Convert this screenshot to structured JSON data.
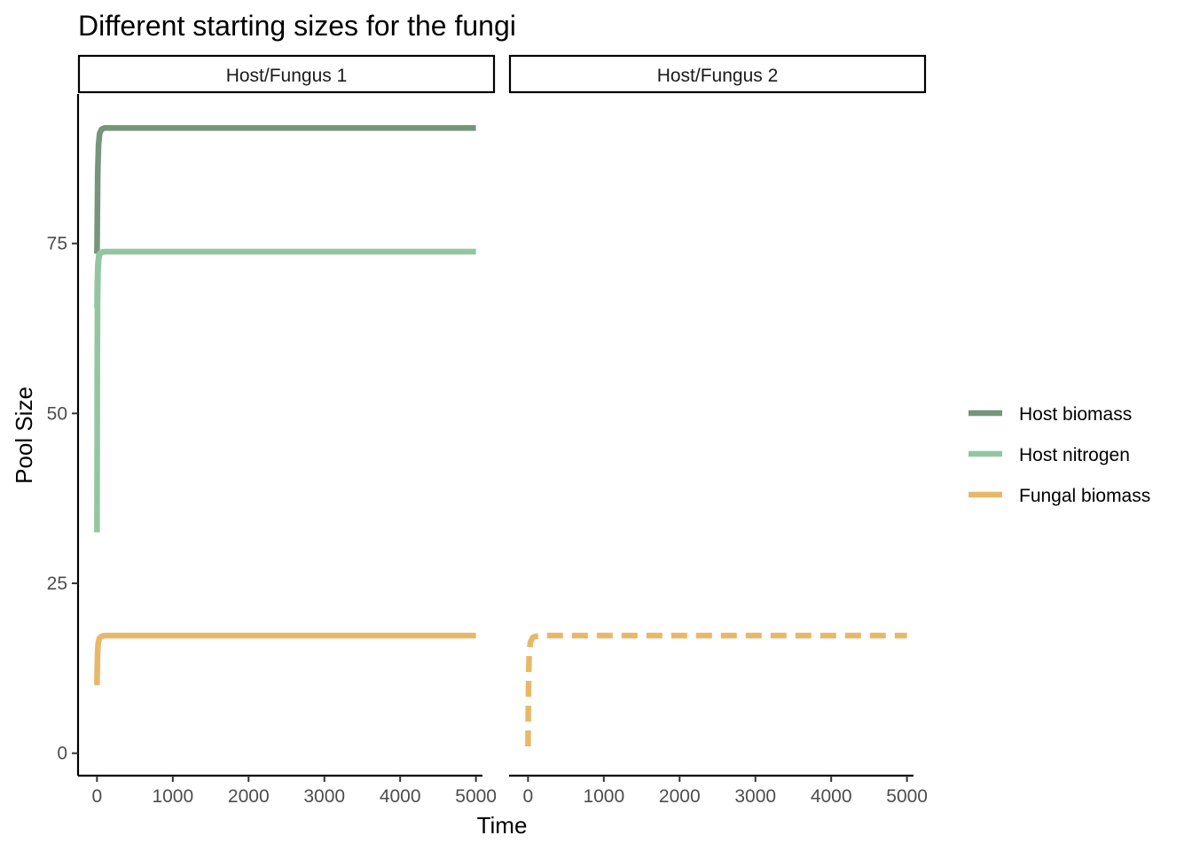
{
  "chart_data": {
    "type": "line",
    "title": "Different starting sizes for the fungi",
    "xlabel": "Time",
    "ylabel": "Pool Size",
    "xlim": [
      -250,
      5250
    ],
    "ylim": [
      -3.3,
      97
    ],
    "x_ticks": [
      0,
      1000,
      2000,
      3000,
      4000,
      5000
    ],
    "y_ticks": [
      0,
      25,
      50,
      75
    ],
    "grid": false,
    "legend_position": "right",
    "facets": [
      {
        "label": "Host/Fungus 1",
        "series": [
          {
            "name": "Host biomass",
            "color": "#76957a",
            "dash": "solid",
            "points": [
              [
                0,
                73.5
              ],
              [
                5,
                80
              ],
              [
                10,
                85.5
              ],
              [
                20,
                89.5
              ],
              [
                35,
                91.2
              ],
              [
                60,
                91.8
              ],
              [
                100,
                92.0
              ],
              [
                5000,
                92.0
              ]
            ]
          },
          {
            "name": "Host nitrogen",
            "color": "#93c6a0",
            "dash": "solid",
            "points": [
              [
                0,
                32.5
              ],
              [
                2,
                45
              ],
              [
                4,
                58
              ],
              [
                7,
                66
              ],
              [
                12,
                70.5
              ],
              [
                20,
                72.5
              ],
              [
                35,
                73.4
              ],
              [
                60,
                73.7
              ],
              [
                100,
                73.8
              ],
              [
                5000,
                73.8
              ]
            ]
          },
          {
            "name": "Host nitrogen",
            "color": "#93c6a0",
            "dash": "solid",
            "points": [
              [
                0,
                65.5
              ],
              [
                5,
                69.5
              ],
              [
                12,
                72
              ],
              [
                25,
                73.3
              ],
              [
                50,
                73.7
              ],
              [
                100,
                73.8
              ]
            ]
          },
          {
            "name": "Fungal biomass",
            "color": "#e8b86a",
            "dash": "solid",
            "points": [
              [
                0,
                10
              ],
              [
                3,
                12.5
              ],
              [
                8,
                14.8
              ],
              [
                15,
                16.1
              ],
              [
                30,
                16.9
              ],
              [
                60,
                17.2
              ],
              [
                100,
                17.3
              ],
              [
                5000,
                17.3
              ]
            ]
          }
        ]
      },
      {
        "label": "Host/Fungus 2",
        "series": [
          {
            "name": "Fungal biomass",
            "color": "#e8b86a",
            "dash": "dashed",
            "points": [
              [
                0,
                1.0
              ],
              [
                3,
                6
              ],
              [
                8,
                11
              ],
              [
                15,
                14.5
              ],
              [
                30,
                16.3
              ],
              [
                60,
                17.0
              ],
              [
                100,
                17.2
              ],
              [
                200,
                17.3
              ],
              [
                5000,
                17.3
              ]
            ]
          }
        ]
      }
    ],
    "legend": [
      {
        "name": "Host biomass",
        "color": "#76957a"
      },
      {
        "name": "Host nitrogen",
        "color": "#93c6a0"
      },
      {
        "name": "Fungal biomass",
        "color": "#e8b86a"
      }
    ]
  }
}
